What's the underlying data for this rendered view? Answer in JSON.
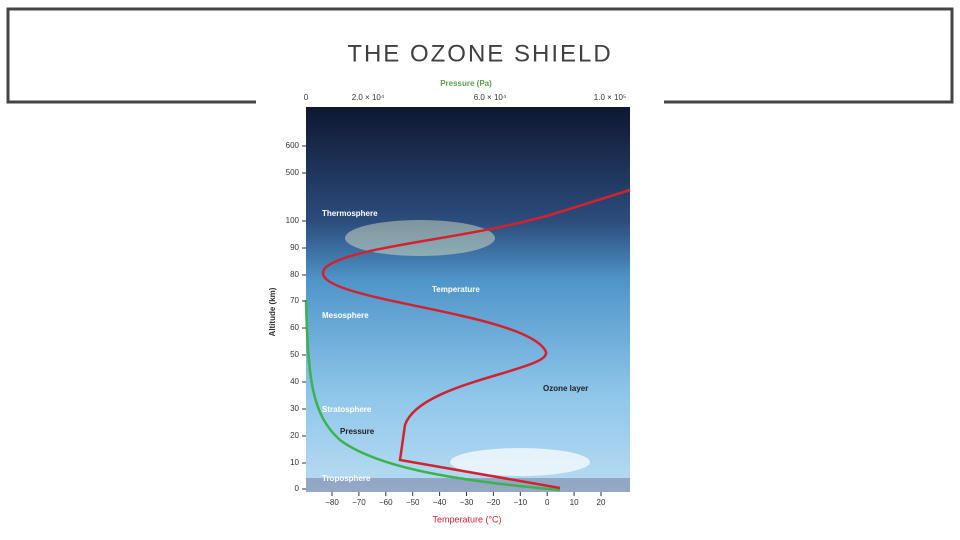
{
  "slide": {
    "title": "THE OZONE SHIELD"
  },
  "figure": {
    "pressure_axis": {
      "title": "Pressure (Pa)",
      "ticks": [
        "0",
        "2.0 × 10⁴",
        "6.0 × 10⁴",
        "1.0 × 10⁵"
      ]
    },
    "temperature_axis": {
      "title": "Temperature (°C)",
      "ticks": [
        "−80",
        "−70",
        "−60",
        "−50",
        "−40",
        "−30",
        "−20",
        "−10",
        "0",
        "10",
        "20"
      ]
    },
    "altitude_axis": {
      "title": "Altitude (km)",
      "ticks": [
        "600",
        "500",
        "100",
        "90",
        "80",
        "70",
        "60",
        "50",
        "40",
        "30",
        "20",
        "10",
        "0"
      ]
    },
    "layers": [
      "Thermosphere",
      "Mesosphere",
      "Stratosphere",
      "Troposphere"
    ],
    "curve_labels": [
      "Temperature",
      "Pressure"
    ],
    "ozone_label": "Ozone layer"
  }
}
